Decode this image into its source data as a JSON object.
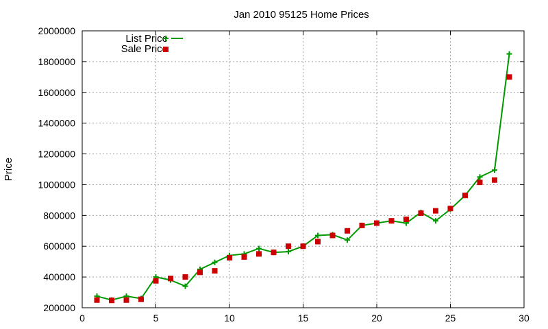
{
  "chart_data": {
    "type": "line",
    "title": "Jan 2010 95125 Home Prices",
    "xlabel": "",
    "ylabel": "Price",
    "xlim": [
      0,
      30
    ],
    "ylim": [
      200000,
      2000000
    ],
    "xticks": [
      0,
      5,
      10,
      15,
      20,
      25,
      30
    ],
    "yticks": [
      200000,
      400000,
      600000,
      800000,
      1000000,
      1200000,
      1400000,
      1600000,
      1800000,
      2000000
    ],
    "grid": true,
    "legend_position": "top-left",
    "series": [
      {
        "name": "List Price",
        "style": "line-with-plus-markers",
        "color": "#009900",
        "x": [
          1,
          2,
          3,
          4,
          5,
          6,
          7,
          8,
          9,
          10,
          11,
          12,
          13,
          14,
          15,
          16,
          17,
          18,
          19,
          20,
          21,
          22,
          23,
          24,
          25,
          26,
          27,
          28,
          29
        ],
        "y": [
          275000,
          250000,
          275000,
          260000,
          400000,
          380000,
          340000,
          450000,
          495000,
          540000,
          550000,
          585000,
          560000,
          565000,
          600000,
          670000,
          675000,
          640000,
          735000,
          750000,
          765000,
          750000,
          820000,
          765000,
          840000,
          930000,
          1050000,
          1095000,
          1850000
        ]
      },
      {
        "name": "Sale Price",
        "style": "square-markers",
        "color": "#cc0000",
        "x": [
          1,
          2,
          3,
          4,
          5,
          6,
          7,
          8,
          9,
          10,
          11,
          12,
          13,
          14,
          15,
          16,
          17,
          18,
          19,
          20,
          21,
          22,
          23,
          24,
          25,
          26,
          27,
          28,
          29
        ],
        "y": [
          250000,
          248000,
          250000,
          255000,
          375000,
          390000,
          400000,
          430000,
          440000,
          525000,
          530000,
          550000,
          560000,
          600000,
          600000,
          630000,
          670000,
          700000,
          735000,
          750000,
          765000,
          775000,
          815000,
          830000,
          845000,
          930000,
          1015000,
          1030000,
          1700000
        ]
      }
    ]
  }
}
